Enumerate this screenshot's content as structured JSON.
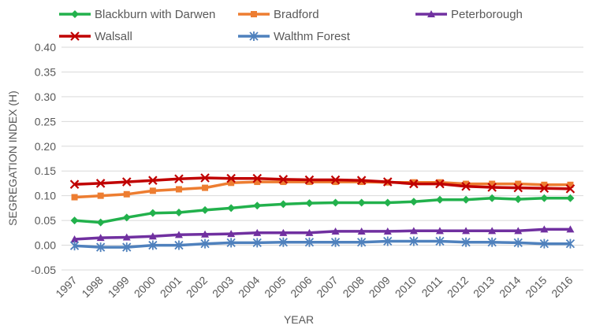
{
  "chart_data": {
    "type": "line",
    "xlabel": "YEAR",
    "ylabel": "SEGREGATION INDEX (H)",
    "ylim": [
      -0.05,
      0.4
    ],
    "yticks": [
      "0.40",
      "0.35",
      "0.30",
      "0.25",
      "0.20",
      "0.15",
      "0.10",
      "0.05",
      "0.00",
      "-0.05"
    ],
    "ytick_values": [
      0.4,
      0.35,
      0.3,
      0.25,
      0.2,
      0.15,
      0.1,
      0.05,
      0.0,
      -0.05
    ],
    "grid": true,
    "legend_position": "top",
    "x": [
      "1997",
      "1998",
      "1999",
      "2000",
      "2001",
      "2002",
      "2003",
      "2004",
      "2005",
      "2006",
      "2007",
      "2008",
      "2009",
      "2010",
      "2011",
      "2012",
      "2013",
      "2014",
      "2015",
      "2016"
    ],
    "series": [
      {
        "name": "Blackburn with Darwen",
        "color": "#22b14c",
        "marker": "diamond",
        "values": [
          0.05,
          0.046,
          0.056,
          0.065,
          0.066,
          0.071,
          0.075,
          0.08,
          0.083,
          0.085,
          0.086,
          0.086,
          0.086,
          0.088,
          0.092,
          0.092,
          0.095,
          0.093,
          0.095,
          0.095
        ]
      },
      {
        "name": "Bradford",
        "color": "#ed7d31",
        "marker": "square",
        "values": [
          0.097,
          0.1,
          0.103,
          0.11,
          0.113,
          0.116,
          0.126,
          0.128,
          0.128,
          0.128,
          0.128,
          0.128,
          0.127,
          0.127,
          0.127,
          0.124,
          0.124,
          0.124,
          0.122,
          0.122
        ]
      },
      {
        "name": "Peterborough",
        "color": "#7030a0",
        "marker": "triangle",
        "values": [
          0.012,
          0.015,
          0.016,
          0.018,
          0.021,
          0.022,
          0.023,
          0.025,
          0.025,
          0.025,
          0.028,
          0.028,
          0.028,
          0.029,
          0.029,
          0.029,
          0.029,
          0.029,
          0.032,
          0.032
        ]
      },
      {
        "name": "Walsall",
        "color": "#c00000",
        "marker": "x",
        "values": [
          0.123,
          0.125,
          0.128,
          0.131,
          0.134,
          0.136,
          0.135,
          0.135,
          0.133,
          0.132,
          0.132,
          0.131,
          0.128,
          0.124,
          0.124,
          0.119,
          0.117,
          0.116,
          0.115,
          0.114
        ]
      },
      {
        "name": "Walthm Forest",
        "color": "#4f81bd",
        "marker": "star",
        "values": [
          -0.001,
          -0.004,
          -0.004,
          0.0,
          0.0,
          0.003,
          0.005,
          0.005,
          0.006,
          0.006,
          0.006,
          0.006,
          0.008,
          0.008,
          0.008,
          0.006,
          0.006,
          0.005,
          0.003,
          0.003
        ]
      }
    ]
  }
}
